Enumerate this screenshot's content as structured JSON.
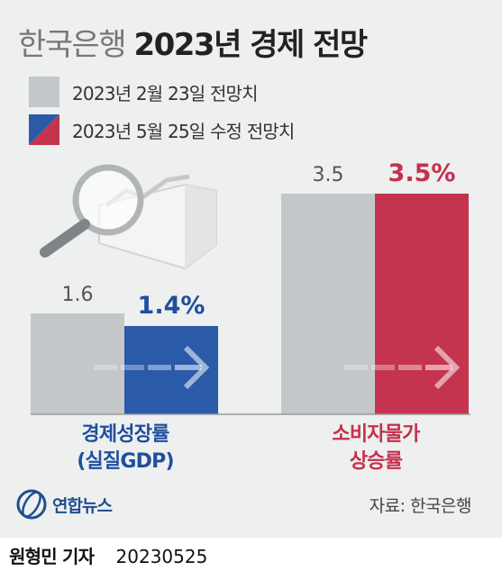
{
  "title": {
    "light": "한국은행",
    "bold": "2023년 경제 전망"
  },
  "legend": [
    {
      "label": "2023년 2월 23일 전망치",
      "color": "#c4c7c9"
    },
    {
      "label": "2023년 5월 25일 수정 전망치",
      "colors": [
        "#2b5aa8",
        "#c4344e"
      ]
    }
  ],
  "chart_data": {
    "type": "bar",
    "categories": [
      "경제성장률 (실질GDP)",
      "소비자물가 상승률"
    ],
    "series": [
      {
        "values": [
          1.6,
          3.5
        ]
      },
      {
        "values": [
          1.4,
          3.5
        ]
      }
    ],
    "data_labels": [
      [
        "1.6",
        "3.5"
      ],
      [
        "1.4%",
        "3.5%"
      ]
    ],
    "colors": {
      "old": "#c4c7c9",
      "gdp_new": "#2a5aa8",
      "cpi_new": "#c4344e",
      "gdp_label": "#1f4f9e",
      "cpi_label": "#c4304e"
    },
    "ylim": [
      0,
      3.8
    ]
  },
  "category_labels": [
    {
      "line1": "경제성장률",
      "line2": "(실질GDP)",
      "color": "#1f4f9e"
    },
    {
      "line1": "소비자물가",
      "line2": "상승률",
      "color": "#c4304e"
    }
  ],
  "logo": {
    "text": "연합뉴스",
    "icon": "yonhap-logo-icon"
  },
  "source": "자료: 한국은행",
  "footer": {
    "author": "원형민 기자",
    "date": "20230525"
  }
}
